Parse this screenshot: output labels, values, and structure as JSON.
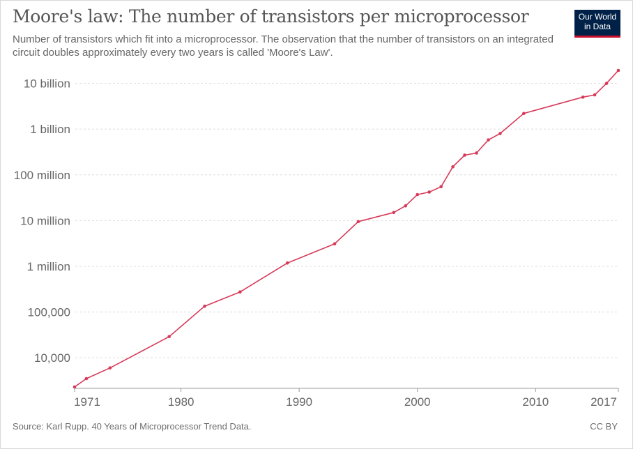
{
  "header": {
    "title": "Moore's law: The number of transistors per microprocessor",
    "subtitle": "Number of transistors which fit into a microprocessor. The observation that the number of transistors on an integrated circuit doubles approximately every two years is called 'Moore's Law'."
  },
  "logo": {
    "line1": "Our World",
    "line2": "in Data",
    "bg_color": "#002147",
    "accent_color": "#c8102e"
  },
  "footer": {
    "source": "Source: Karl Rupp. 40 Years of Microprocessor Trend Data.",
    "license": "CC BY"
  },
  "chart_data": {
    "type": "line",
    "title": "Moore's law: The number of transistors per microprocessor",
    "xlabel": "",
    "ylabel": "",
    "y_scale": "log",
    "xlim": [
      1971,
      2017
    ],
    "ylim": [
      2300,
      19200000000
    ],
    "grid": "horizontal dashed",
    "line_color": "#d73a59",
    "x_ticks": [
      {
        "value": 1971,
        "label": "1971"
      },
      {
        "value": 1980,
        "label": "1980"
      },
      {
        "value": 1990,
        "label": "1990"
      },
      {
        "value": 2000,
        "label": "2000"
      },
      {
        "value": 2010,
        "label": "2010"
      },
      {
        "value": 2017,
        "label": "2017"
      }
    ],
    "y_ticks": [
      {
        "value": 10000,
        "label": "10,000"
      },
      {
        "value": 100000,
        "label": "100,000"
      },
      {
        "value": 1000000,
        "label": "1 million"
      },
      {
        "value": 10000000,
        "label": "10 million"
      },
      {
        "value": 100000000,
        "label": "100 million"
      },
      {
        "value": 1000000000,
        "label": "1 billion"
      },
      {
        "value": 10000000000,
        "label": "10 billion"
      }
    ],
    "series": [
      {
        "x": [
          1971,
          1972,
          1974,
          1979,
          1982,
          1985,
          1989,
          1993,
          1995,
          1998,
          1999,
          2000,
          2001,
          2002,
          2003,
          2004,
          2005,
          2006,
          2007,
          2009,
          2014,
          2015,
          2016,
          2017
        ],
        "y": [
          2300,
          3500,
          6000,
          29000,
          134000,
          275000,
          1180000,
          3100000,
          9500000,
          15000000,
          21000000,
          37000000,
          42000000,
          55000000,
          150000000,
          270000000,
          300000000,
          580000000,
          800000000,
          2200000000,
          5000000000,
          5600000000,
          10000000000,
          19200000000
        ]
      }
    ]
  }
}
